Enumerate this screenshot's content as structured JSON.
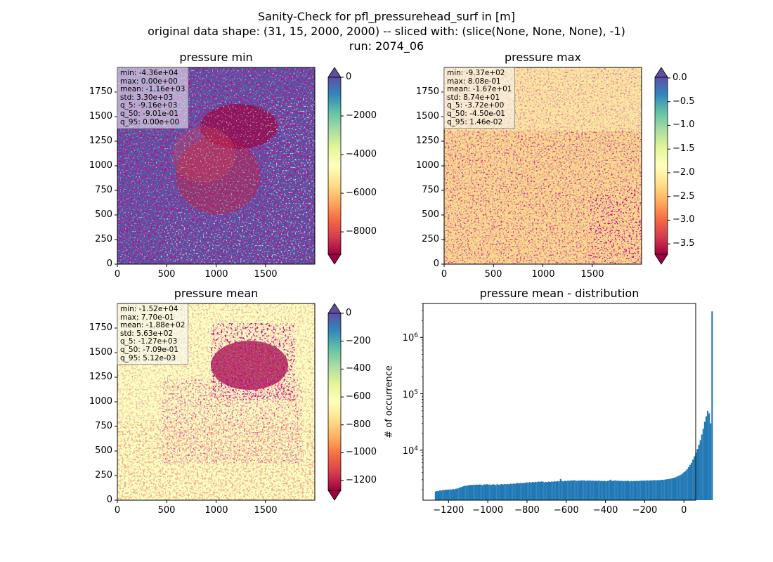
{
  "figure": {
    "title_lines": [
      "Sanity-Check for pfl_pressurehead_surf in [m]",
      "original data shape: (31, 15, 2000, 2000) -- sliced with: (slice(None, None, None), -1)",
      "run: 2074_06"
    ]
  },
  "colors": {
    "hist_bar": "#1f77b4",
    "spectral": [
      "#9e0142",
      "#d53e4f",
      "#f46d43",
      "#fdae61",
      "#fee08b",
      "#ffffbf",
      "#e6f598",
      "#abdda4",
      "#66c2a5",
      "#3288bd",
      "#5e4fa2"
    ]
  },
  "chart_data": [
    {
      "type": "heatmap",
      "title": "pressure min",
      "xticks": [
        "0",
        "500",
        "1000",
        "1500"
      ],
      "yticks": [
        "0",
        "250",
        "500",
        "750",
        "1000",
        "1250",
        "1500",
        "1750"
      ],
      "xlim": [
        0,
        2000
      ],
      "ylim": [
        0,
        2000
      ],
      "colorbar": {
        "ticks": [
          "0",
          "−2000",
          "−4000",
          "−6000",
          "−8000"
        ],
        "vmin": -9160,
        "vmax": 0,
        "tick_values": [
          0,
          -2000,
          -4000,
          -6000,
          -8000
        ],
        "extend": "both"
      },
      "stats": [
        "min: -4.36e+04",
        "max: 0.00e+00",
        "mean: -1.16e+03",
        "std: 3.30e+03",
        "q_5: -9.16e+03",
        "q_50: -9.01e-01",
        "q_95: 0.00e+00"
      ]
    },
    {
      "type": "heatmap",
      "title": "pressure max",
      "xticks": [
        "0",
        "500",
        "1000",
        "1500"
      ],
      "yticks": [
        "0",
        "250",
        "500",
        "750",
        "1000",
        "1250",
        "1500",
        "1750"
      ],
      "xlim": [
        0,
        2000
      ],
      "ylim": [
        0,
        2000
      ],
      "colorbar": {
        "ticks": [
          "0.0",
          "−0.5",
          "−1.0",
          "−1.5",
          "−2.0",
          "−2.5",
          "−3.0",
          "−3.5"
        ],
        "vmin": -3.72,
        "vmax": 0.0146,
        "tick_values": [
          0,
          -0.5,
          -1.0,
          -1.5,
          -2.0,
          -2.5,
          -3.0,
          -3.5
        ],
        "extend": "both"
      },
      "stats": [
        "min: -9.37e+02",
        "max: 8.08e-01",
        "mean: -1.67e+01",
        "std: 8.74e+01",
        "q_5: -3.72e+00",
        "q_50: -4.50e-01",
        "q_95: 1.46e-02"
      ]
    },
    {
      "type": "heatmap",
      "title": "pressure mean",
      "xticks": [
        "0",
        "500",
        "1000",
        "1500"
      ],
      "yticks": [
        "0",
        "250",
        "500",
        "750",
        "1000",
        "1250",
        "1500",
        "1750"
      ],
      "xlim": [
        0,
        2000
      ],
      "ylim": [
        0,
        2000
      ],
      "colorbar": {
        "ticks": [
          "0",
          "−200",
          "−400",
          "−600",
          "−800",
          "−1000",
          "−1200"
        ],
        "vmin": -1270,
        "vmax": 0.00512,
        "tick_values": [
          0,
          -200,
          -400,
          -600,
          -800,
          -1000,
          -1200
        ],
        "extend": "both"
      },
      "stats": [
        "min: -1.52e+04",
        "max: 7.70e-01",
        "mean: -1.88e+02",
        "std: 5.63e+02",
        "q_5: -1.27e+03",
        "q_50: -7.09e-01",
        "q_95: 5.12e-03"
      ]
    },
    {
      "type": "bar",
      "title": "pressure mean - distribution",
      "ylabel": "# of occurrence",
      "yscale": "log",
      "xlim": [
        -1330,
        60
      ],
      "ylim": [
        1300,
        4000000
      ],
      "xticks": [
        "−1200",
        "−1000",
        "−800",
        "−600",
        "−400",
        "−200",
        "0"
      ],
      "xtick_values": [
        -1200,
        -1000,
        -800,
        -600,
        -400,
        -200,
        0
      ],
      "yticks_major": [
        "10^4",
        "10^5",
        "10^6"
      ],
      "ytick_values": [
        10000,
        100000,
        1000000
      ],
      "bin_width": 7.5,
      "bins_start": -1270,
      "values": [
        1850,
        1900,
        1880,
        1950,
        1920,
        1980,
        1960,
        2000,
        1990,
        2010,
        2020,
        2000,
        2050,
        2030,
        2080,
        2100,
        2150,
        2200,
        2250,
        2300,
        2350,
        2330,
        2380,
        2400,
        2420,
        2410,
        2450,
        2430,
        2460,
        2440,
        2470,
        2450,
        2400,
        2480,
        2460,
        2500,
        2450,
        2470,
        2430,
        2490,
        2460,
        2420,
        2500,
        2450,
        2480,
        2510,
        2470,
        2520,
        2490,
        2530,
        2480,
        2560,
        2520,
        2580,
        2540,
        2600,
        2620,
        2580,
        2640,
        2600,
        2650,
        2630,
        2700,
        2660,
        2720,
        2680,
        2740,
        2700,
        2760,
        2720,
        2780,
        2750,
        2800,
        2770,
        2700,
        2750,
        2720,
        2780,
        2740,
        2800,
        2760,
        2820,
        2780,
        2840,
        2800,
        3100,
        2850,
        2800,
        2880,
        2830,
        2900,
        2860,
        2920,
        2880,
        2950,
        2900,
        2860,
        2910,
        2880,
        2930,
        2890,
        2940,
        2860,
        2900,
        2880,
        2920,
        2870,
        2900,
        2850,
        2880,
        2860,
        2900,
        2840,
        2880,
        2820,
        2860,
        2800,
        2850,
        2900,
        3000,
        2860,
        2880,
        2920,
        2870,
        2900,
        2850,
        2880,
        2860,
        2830,
        2870,
        2840,
        2880,
        2800,
        2850,
        2820,
        2860,
        2830,
        2870,
        2840,
        2880,
        2900,
        2870,
        2910,
        2880,
        2920,
        2890,
        2930,
        2900,
        2940,
        2950,
        2920,
        2960,
        2930,
        2980,
        3000,
        2970,
        3020,
        3050,
        3080,
        3100,
        3150,
        3200,
        3250,
        3300,
        3400,
        3500,
        3600,
        3700,
        3900,
        4100,
        4300,
        4600,
        5000,
        5500,
        6000,
        6800,
        7800,
        9000,
        10500,
        12500,
        15000,
        19000,
        24000,
        32000,
        40000,
        50000,
        45000,
        30000,
        2900000
      ]
    }
  ]
}
